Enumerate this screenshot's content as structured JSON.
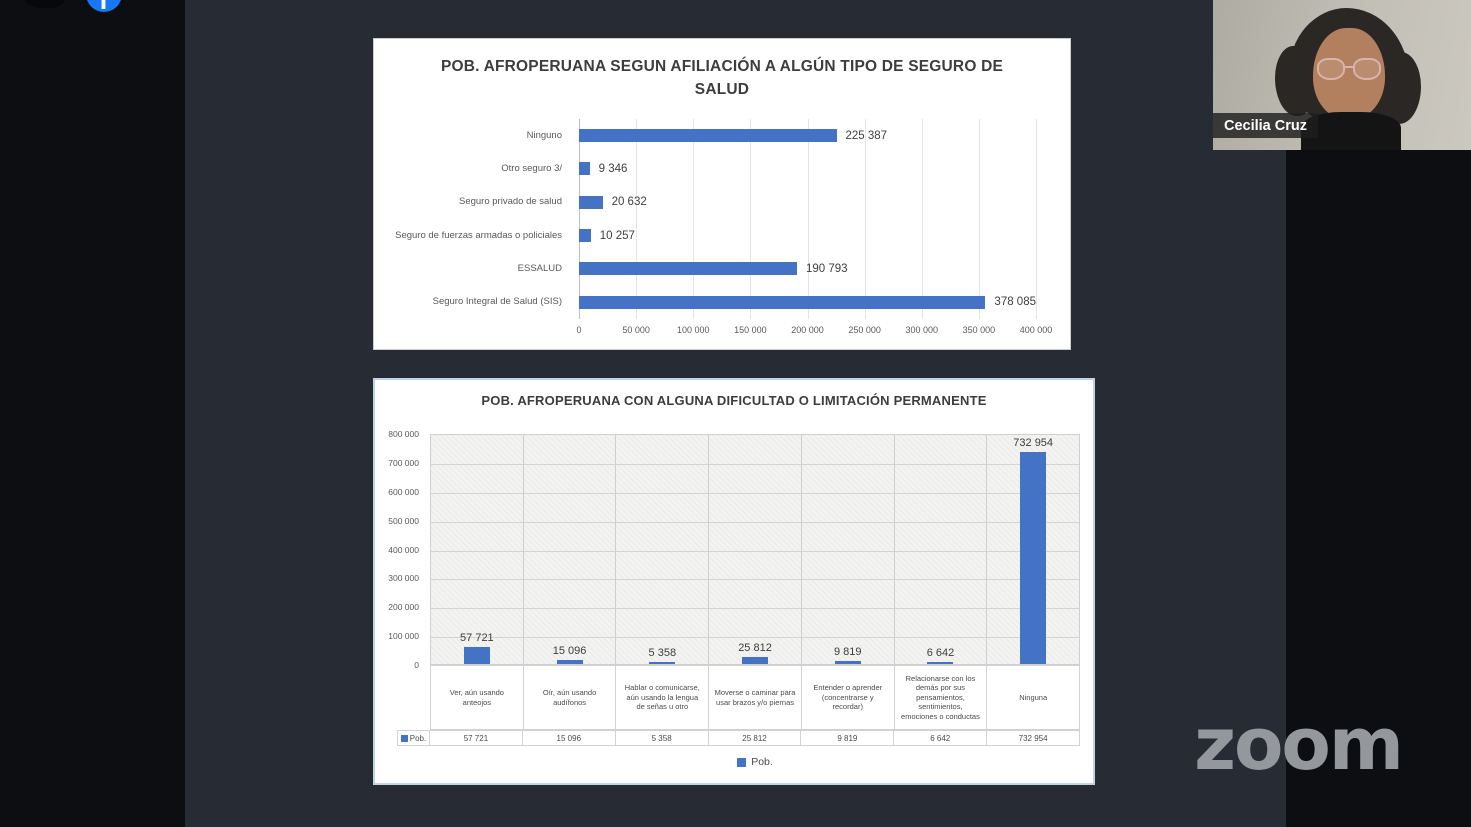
{
  "meeting": {
    "watermark": "zoom",
    "participant": {
      "name": "Cecilia Cruz"
    },
    "icons": {
      "facebook_icon_glyph": "f",
      "facebook_blue": "#1877f2"
    }
  },
  "chart_data": [
    {
      "type": "bar",
      "orientation": "horizontal",
      "title": "POB. AFROPERUANA SEGUN AFILIACIÓN A ALGÚN TIPO DE SEGURO DE SALUD",
      "categories": [
        "Ninguno",
        "Otro seguro 3/",
        "Seguro privado de salud",
        "Seguro de fuerzas armadas o policiales",
        "ESSALUD",
        "Seguro Integral de Salud (SIS)"
      ],
      "values": [
        225387,
        9346,
        20632,
        10257,
        190793,
        378085
      ],
      "value_labels": [
        "225 387",
        "9 346",
        "20 632",
        "10 257",
        "190 793",
        "378 085"
      ],
      "x_ticks": [
        "0",
        "50 000",
        "100 000",
        "150 000",
        "200 000",
        "250 000",
        "300 000",
        "350 000",
        "400 000"
      ],
      "xlim": [
        0,
        400000
      ],
      "grid": true,
      "legend": null,
      "bar_color": "#4472c4"
    },
    {
      "type": "bar",
      "orientation": "vertical",
      "title": "POB. AFROPERUANA CON ALGUNA DIFICULTAD O LIMITACIÓN PERMANENTE",
      "categories": [
        "Ver, aún usando anteojos",
        "Oír, aún usando audífonos",
        "Hablar o comunicarse, aún usando la lengua de señas u otro",
        "Moverse o caminar para usar brazos y/o piernas",
        "Entender o aprender (concentrarse y recordar)",
        "Relacionarse con los demás por sus pensamientos, sentimientos, emociones o conductas",
        "Ninguna"
      ],
      "series": [
        {
          "name": "Pob.",
          "values": [
            57721,
            15096,
            5358,
            25812,
            9819,
            6642,
            732954
          ]
        }
      ],
      "value_labels": [
        "57 721",
        "15 096",
        "5 358",
        "25 812",
        "9 819",
        "6 642",
        "732 954"
      ],
      "y_ticks": [
        "800 000",
        "700 000",
        "600 000",
        "500 000",
        "400 000",
        "300 000",
        "200 000",
        "100 000",
        "0"
      ],
      "ylim": [
        0,
        800000
      ],
      "grid": true,
      "legend": "Pob.",
      "legend_position": "bottom",
      "data_table": {
        "row_label": "Pob.",
        "row_values": [
          "57 721",
          "15 096",
          "5 358",
          "25 812",
          "9 819",
          "6 642",
          "732 954"
        ]
      },
      "bar_color": "#4472c4"
    }
  ]
}
